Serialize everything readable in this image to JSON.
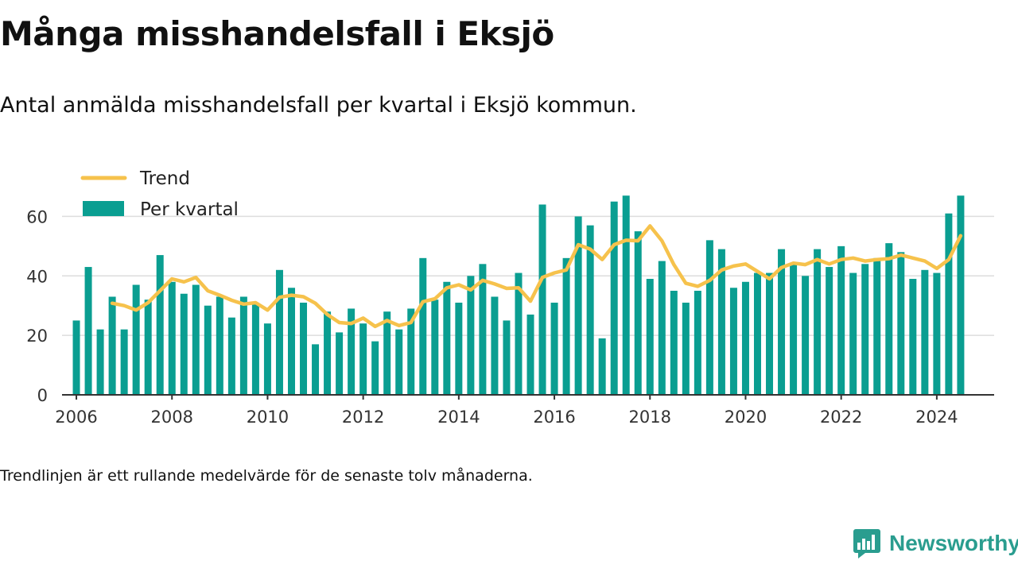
{
  "header": {
    "title": "Många misshandelsfall i Eksjö",
    "subtitle": "Antal anmälda misshandelsfall per kvartal i Eksjö kommun."
  },
  "footnote": "Trendlinjen är ett rullande medelvärde för de senaste tolv månaderna.",
  "brand": {
    "name": "Newsworthy",
    "icon": "newsworthy-logo-icon"
  },
  "colors": {
    "bars": "#0a9e91",
    "trend": "#f6c24c",
    "grid": "#dddddd",
    "axis": "#333333",
    "brand": "#2a9d8f"
  },
  "chart_data": {
    "type": "bar",
    "x_unit": "year",
    "xlim": [
      2005.7,
      2025.2
    ],
    "ylim": [
      0,
      70
    ],
    "y_ticks": [
      0,
      20,
      40,
      60
    ],
    "x_ticks": [
      2006,
      2008,
      2010,
      2012,
      2014,
      2016,
      2018,
      2020,
      2022,
      2024
    ],
    "grid": true,
    "legend_position": "top-left",
    "legend": [
      {
        "name": "Trend",
        "kind": "line"
      },
      {
        "name": "Per kvartal",
        "kind": "bar"
      }
    ],
    "series": [
      {
        "name": "Per kvartal",
        "type": "bar",
        "x": [
          2006.0,
          2006.25,
          2006.5,
          2006.75,
          2007.0,
          2007.25,
          2007.5,
          2007.75,
          2008.0,
          2008.25,
          2008.5,
          2008.75,
          2009.0,
          2009.25,
          2009.5,
          2009.75,
          2010.0,
          2010.25,
          2010.5,
          2010.75,
          2011.0,
          2011.25,
          2011.5,
          2011.75,
          2012.0,
          2012.25,
          2012.5,
          2012.75,
          2013.0,
          2013.25,
          2013.5,
          2013.75,
          2014.0,
          2014.25,
          2014.5,
          2014.75,
          2015.0,
          2015.25,
          2015.5,
          2015.75,
          2016.0,
          2016.25,
          2016.5,
          2016.75,
          2017.0,
          2017.25,
          2017.5,
          2017.75,
          2018.0,
          2018.25,
          2018.5,
          2018.75,
          2019.0,
          2019.25,
          2019.5,
          2019.75,
          2020.0,
          2020.25,
          2020.5,
          2020.75,
          2021.0,
          2021.25,
          2021.5,
          2021.75,
          2022.0,
          2022.25,
          2022.5,
          2022.75,
          2023.0,
          2023.25,
          2023.5,
          2023.75,
          2024.0,
          2024.25,
          2024.5
        ],
        "values": [
          25,
          43,
          22,
          33,
          22,
          37,
          32,
          47,
          38,
          34,
          37,
          30,
          33,
          26,
          33,
          31,
          24,
          42,
          36,
          31,
          17,
          28,
          21,
          29,
          24,
          18,
          28,
          22,
          29,
          46,
          32,
          38,
          31,
          40,
          44,
          33,
          25,
          41,
          27,
          64,
          31,
          46,
          60,
          57,
          19,
          65,
          67,
          55,
          39,
          45,
          35,
          31,
          35,
          52,
          49,
          36,
          38,
          41,
          41,
          49,
          44,
          40,
          49,
          43,
          50,
          41,
          44,
          46,
          51,
          48,
          39,
          42,
          41,
          61,
          67
        ]
      },
      {
        "name": "Trend",
        "type": "line",
        "x": [
          2006.75,
          2007.0,
          2007.25,
          2007.5,
          2007.75,
          2008.0,
          2008.25,
          2008.5,
          2008.75,
          2009.0,
          2009.25,
          2009.5,
          2009.75,
          2010.0,
          2010.25,
          2010.5,
          2010.75,
          2011.0,
          2011.25,
          2011.5,
          2011.75,
          2012.0,
          2012.25,
          2012.5,
          2012.75,
          2013.0,
          2013.25,
          2013.5,
          2013.75,
          2014.0,
          2014.25,
          2014.5,
          2014.75,
          2015.0,
          2015.25,
          2015.5,
          2015.75,
          2016.0,
          2016.25,
          2016.5,
          2016.75,
          2017.0,
          2017.25,
          2017.5,
          2017.75,
          2018.0,
          2018.25,
          2018.5,
          2018.75,
          2019.0,
          2019.25,
          2019.5,
          2019.75,
          2020.0,
          2020.25,
          2020.5,
          2020.75,
          2021.0,
          2021.25,
          2021.5,
          2021.75,
          2022.0,
          2022.25,
          2022.5,
          2022.75,
          2023.0,
          2023.25,
          2023.5,
          2023.75,
          2024.0,
          2024.25,
          2024.5
        ],
        "values": [
          30.8,
          30,
          28.5,
          31,
          35,
          39,
          38,
          39.5,
          35,
          33.5,
          31.8,
          30.5,
          31,
          28.5,
          32.8,
          33.5,
          33,
          30.8,
          27,
          24.3,
          24,
          25.8,
          23,
          25,
          23.3,
          24.3,
          31.3,
          32.3,
          36,
          37,
          35.3,
          38.5,
          37.3,
          35.8,
          36,
          31.5,
          39.5,
          41,
          42,
          50.5,
          49,
          45.5,
          50.5,
          52,
          51.8,
          56.8,
          51.8,
          43.8,
          37.5,
          36.5,
          38.5,
          42,
          43.3,
          44,
          41.5,
          39,
          42.8,
          44.3,
          43.8,
          45.5,
          44,
          45.5,
          46,
          45,
          45.5,
          45.8,
          47,
          46,
          45,
          42.5,
          45.5,
          53.5
        ]
      }
    ]
  }
}
